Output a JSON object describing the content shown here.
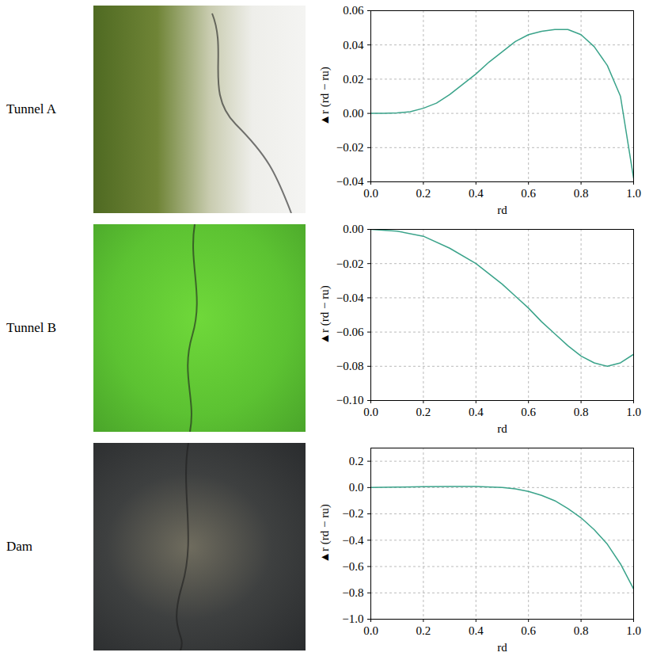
{
  "chart_data": [
    {
      "type": "line",
      "title": "Tunnel A",
      "x_label": "rd",
      "y_label": "▲r (rd − ru)",
      "color": "#3aa38a",
      "grid": true,
      "x": [
        0.0,
        0.05,
        0.1,
        0.15,
        0.2,
        0.25,
        0.3,
        0.35,
        0.4,
        0.45,
        0.5,
        0.55,
        0.6,
        0.65,
        0.7,
        0.75,
        0.8,
        0.85,
        0.9,
        0.95,
        1.0
      ],
      "values": [
        0.0,
        0.0,
        0.0003,
        0.001,
        0.003,
        0.006,
        0.011,
        0.017,
        0.023,
        0.03,
        0.036,
        0.042,
        0.046,
        0.048,
        0.049,
        0.049,
        0.046,
        0.039,
        0.028,
        0.01,
        -0.038
      ],
      "xlim": [
        0,
        1
      ],
      "xticks": [
        {
          "value": 0,
          "label": "0.0"
        },
        {
          "value": 0.2,
          "label": "0.2"
        },
        {
          "value": 0.4,
          "label": "0.4"
        },
        {
          "value": 0.6,
          "label": "0.6"
        },
        {
          "value": 0.8,
          "label": "0.8"
        },
        {
          "value": 1,
          "label": "1.0"
        }
      ],
      "ylim": [
        -0.04,
        0.06
      ],
      "yticks": [
        {
          "value": -0.04,
          "label": "−0.04"
        },
        {
          "value": -0.02,
          "label": "−0.02"
        },
        {
          "value": 0,
          "label": "0.00"
        },
        {
          "value": 0.02,
          "label": "0.02"
        },
        {
          "value": 0.04,
          "label": "0.04"
        },
        {
          "value": 0.06,
          "label": "0.06"
        }
      ]
    },
    {
      "type": "line",
      "title": "Tunnel B",
      "x_label": "rd",
      "y_label": "▲r (rd − ru)",
      "color": "#3aa38a",
      "grid": true,
      "x": [
        0.0,
        0.1,
        0.2,
        0.3,
        0.4,
        0.5,
        0.55,
        0.6,
        0.65,
        0.7,
        0.75,
        0.8,
        0.85,
        0.9,
        0.95,
        1.0
      ],
      "values": [
        0.0,
        -0.001,
        -0.004,
        -0.011,
        -0.02,
        -0.032,
        -0.039,
        -0.046,
        -0.054,
        -0.061,
        -0.068,
        -0.074,
        -0.078,
        -0.08,
        -0.078,
        -0.073
      ],
      "xlim": [
        0,
        1
      ],
      "xticks": [
        {
          "value": 0,
          "label": "0.0"
        },
        {
          "value": 0.2,
          "label": "0.2"
        },
        {
          "value": 0.4,
          "label": "0.4"
        },
        {
          "value": 0.6,
          "label": "0.6"
        },
        {
          "value": 0.8,
          "label": "0.8"
        },
        {
          "value": 1,
          "label": "1.0"
        }
      ],
      "ylim": [
        -0.1,
        0
      ],
      "yticks": [
        {
          "value": -0.1,
          "label": "−0.10"
        },
        {
          "value": -0.08,
          "label": "−0.08"
        },
        {
          "value": -0.06,
          "label": "−0.06"
        },
        {
          "value": -0.04,
          "label": "−0.04"
        },
        {
          "value": -0.02,
          "label": "−0.02"
        },
        {
          "value": 0,
          "label": "0.00"
        }
      ]
    },
    {
      "type": "line",
      "title": "Dam",
      "x_label": "rd",
      "y_label": "▲r (rd − ru)",
      "color": "#3aa38a",
      "grid": true,
      "x": [
        0.0,
        0.1,
        0.2,
        0.3,
        0.4,
        0.5,
        0.55,
        0.6,
        0.65,
        0.7,
        0.75,
        0.8,
        0.85,
        0.9,
        0.95,
        1.0
      ],
      "values": [
        0.0,
        0.003,
        0.006,
        0.008,
        0.008,
        0.0,
        -0.01,
        -0.03,
        -0.06,
        -0.1,
        -0.16,
        -0.23,
        -0.32,
        -0.43,
        -0.58,
        -0.77
      ],
      "xlim": [
        0,
        1
      ],
      "xticks": [
        {
          "value": 0,
          "label": "0.0"
        },
        {
          "value": 0.2,
          "label": "0.2"
        },
        {
          "value": 0.4,
          "label": "0.4"
        },
        {
          "value": 0.6,
          "label": "0.6"
        },
        {
          "value": 0.8,
          "label": "0.8"
        },
        {
          "value": 1,
          "label": "1.0"
        }
      ],
      "ylim": [
        -1,
        0.3
      ],
      "yticks": [
        {
          "value": -1,
          "label": "−1.0"
        },
        {
          "value": -0.8,
          "label": "−0.8"
        },
        {
          "value": -0.6,
          "label": "−0.6"
        },
        {
          "value": -0.4,
          "label": "−0.4"
        },
        {
          "value": -0.2,
          "label": "−0.2"
        },
        {
          "value": 0,
          "label": "0.0"
        },
        {
          "value": 0.2,
          "label": "0.2"
        }
      ]
    }
  ]
}
